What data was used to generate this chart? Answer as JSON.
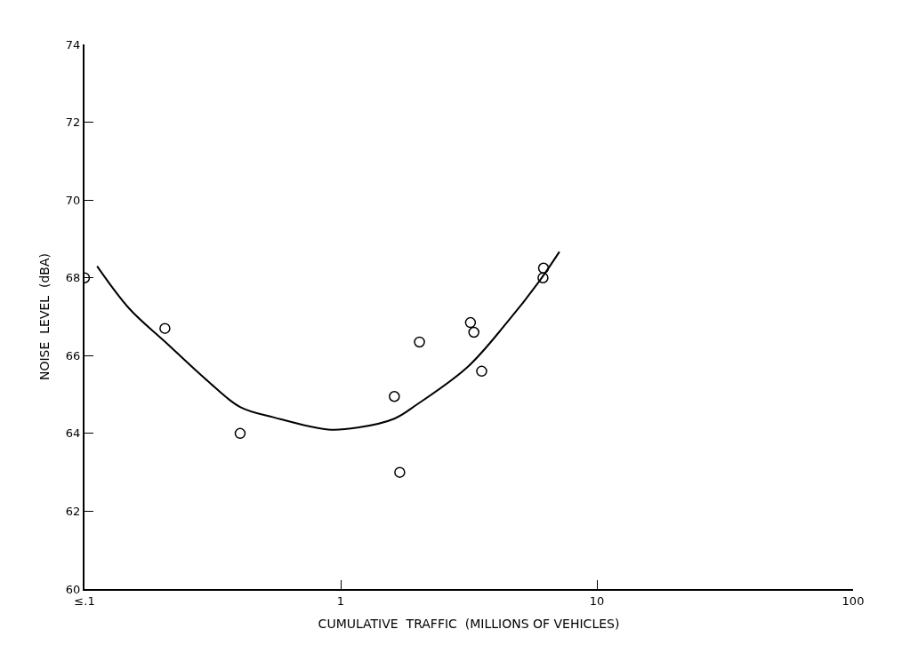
{
  "chart_data": {
    "type": "scatter",
    "xlabel": "CUMULATIVE  TRAFFIC  (MILLIONS OF VEHICLES)",
    "ylabel": "NOISE  LEVEL  (dBA)",
    "log": "x",
    "xlim": [
      0.1,
      100
    ],
    "xticks": [
      {
        "value": 0.1,
        "label": "≤.1"
      },
      1,
      10,
      100
    ],
    "ylim": [
      60,
      74
    ],
    "yticks": [
      60,
      62,
      64,
      66,
      68,
      70,
      72,
      74
    ],
    "series": [
      {
        "marker": "circle",
        "color": "#000000",
        "x": [
          0.1,
          0.206,
          0.405,
          1.62,
          1.7,
          2.03,
          3.21,
          3.31,
          3.55,
          6.19,
          6.16
        ],
        "values": [
          68.0,
          66.7,
          64.0,
          64.95,
          63.0,
          66.35,
          66.85,
          66.6,
          65.6,
          68.25,
          68.0
        ]
      },
      {
        "type": "line",
        "marker": "none",
        "line_style": "solid",
        "color": "#000000",
        "x": [
          0.112,
          0.15,
          0.206,
          0.3,
          0.405,
          0.55,
          0.894,
          1.165,
          1.62,
          1.99,
          3.13,
          4.43,
          5.94,
          7.14
        ],
        "values": [
          68.3,
          67.2,
          66.36,
          65.37,
          64.68,
          64.41,
          64.1,
          64.15,
          64.38,
          64.75,
          65.71,
          66.83,
          67.9,
          68.67
        ]
      }
    ]
  }
}
